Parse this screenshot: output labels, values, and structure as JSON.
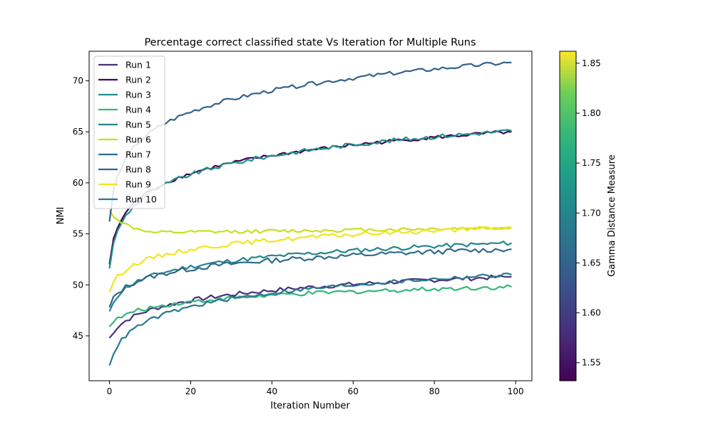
{
  "chart_data": {
    "type": "line",
    "title": "Percentage correct classified state Vs Iteration for Multiple Runs",
    "xlabel": "Iteration Number",
    "ylabel": "NMI",
    "xlim": [
      -5,
      104
    ],
    "ylim": [
      40.6,
      72.9
    ],
    "xticks": [
      0,
      20,
      40,
      60,
      80,
      100
    ],
    "yticks": [
      45,
      50,
      55,
      60,
      65,
      70
    ],
    "legend_position": "upper-left",
    "grid": false,
    "colorbar": {
      "label": "Gamma Distance Measure",
      "min": 1.532,
      "max": 1.862,
      "ticks": [
        1.55,
        1.6,
        1.65,
        1.7,
        1.75,
        1.8,
        1.85
      ],
      "tick_labels": [
        "1.55",
        "1.60",
        "1.65",
        "1.70",
        "1.75",
        "1.80",
        "1.85"
      ],
      "colormap": "viridis"
    },
    "series": [
      {
        "name": "Run 1",
        "color": "#46327e",
        "curve": "log",
        "start": 44.8,
        "end": 50.8,
        "k": 0.5,
        "noise": 0.22
      },
      {
        "name": "Run 2",
        "color": "#440154",
        "curve": "log",
        "start": 52.0,
        "end": 65.0,
        "k": 1.5,
        "noise": 0.18
      },
      {
        "name": "Run 3",
        "color": "#21918c",
        "curve": "log",
        "start": 51.6,
        "end": 65.1,
        "k": 1.4,
        "noise": 0.22
      },
      {
        "name": "Run 4",
        "color": "#35b779",
        "curve": "log",
        "start": 45.9,
        "end": 49.8,
        "k": 0.6,
        "noise": 0.22
      },
      {
        "name": "Run 5",
        "color": "#25858e",
        "curve": "log",
        "start": 47.4,
        "end": 54.1,
        "k": 0.9,
        "noise": 0.22
      },
      {
        "name": "Run 6",
        "color": "#c8e020",
        "curve": "dip",
        "start": 57.3,
        "end": 55.6,
        "k": 1.0,
        "noise": 0.18
      },
      {
        "name": "Run 7",
        "color": "#2f6b8e",
        "curve": "log",
        "start": 47.8,
        "end": 53.5,
        "k": 1.0,
        "noise": 0.25
      },
      {
        "name": "Run 8",
        "color": "#33638d",
        "curve": "log",
        "start": 56.2,
        "end": 71.8,
        "k": 1.6,
        "noise": 0.2
      },
      {
        "name": "Run 9",
        "color": "#f1e51d",
        "curve": "log",
        "start": 49.3,
        "end": 55.6,
        "k": 1.0,
        "noise": 0.22
      },
      {
        "name": "Run 10",
        "color": "#2a788e",
        "curve": "log",
        "start": 42.1,
        "end": 51.0,
        "k": 0.8,
        "noise": 0.2
      }
    ]
  }
}
